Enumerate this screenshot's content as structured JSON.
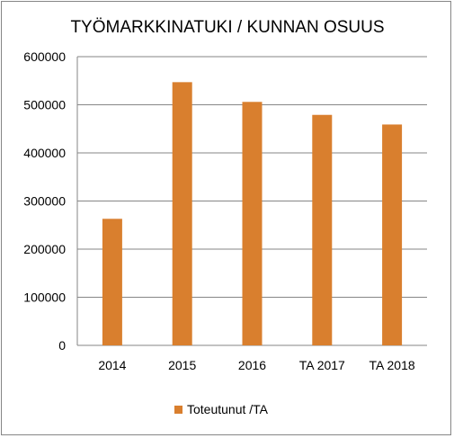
{
  "chart_data": {
    "type": "bar",
    "title": "TYÖMARKKINATUKI  / KUNNAN  OSUUS",
    "categories": [
      "2014",
      "2015",
      "2016",
      "TA 2017",
      "TA 2018"
    ],
    "series": [
      {
        "name": "Toteutunut /TA",
        "values": [
          263000,
          547000,
          506000,
          479000,
          459000
        ],
        "color": "#D97F2E"
      }
    ],
    "y_ticks": [
      "0",
      "100000",
      "200000",
      "300000",
      "400000",
      "500000",
      "600000"
    ],
    "ylim": [
      0,
      600000
    ],
    "grid": true,
    "legend_position": "bottom",
    "xlabel": "",
    "ylabel": ""
  }
}
